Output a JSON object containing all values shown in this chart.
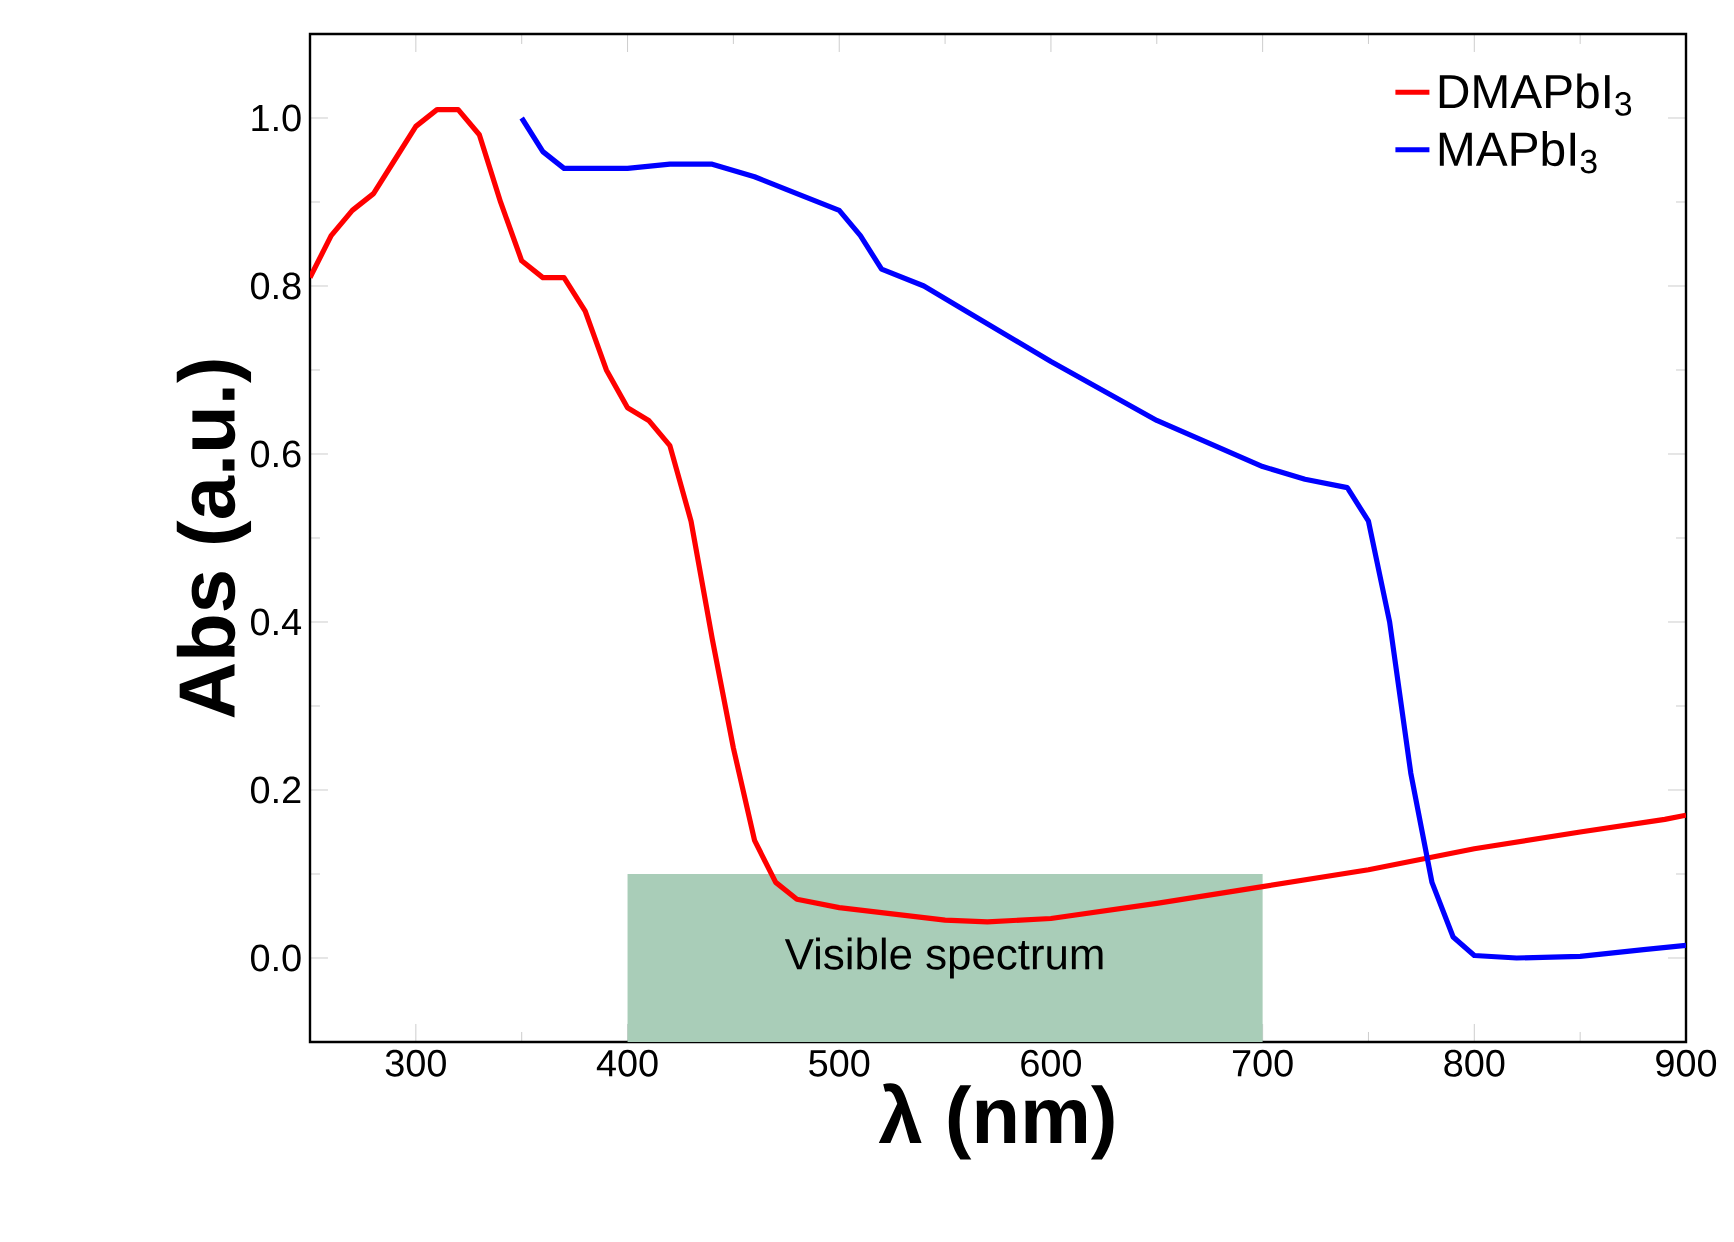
{
  "chart_data": {
    "type": "line",
    "xlabel": "λ (nm)",
    "ylabel": "Abs (a.u.)",
    "xlim": [
      250,
      900
    ],
    "ylim": [
      -0.1,
      1.1
    ],
    "xticks": [
      300,
      400,
      500,
      600,
      700,
      800,
      900
    ],
    "yticks": [
      {
        "value": 0,
        "label": "0.0"
      },
      0.2,
      0.4,
      0.6,
      0.8,
      {
        "value": 1,
        "label": "1.0"
      }
    ],
    "legend": "top right",
    "grid": false,
    "line_style": "solid",
    "marker": "none",
    "bands": [
      {
        "axis": "x",
        "from": 400,
        "to": 700,
        "label": "Visible spectrum",
        "color": "#a9cdb8"
      }
    ],
    "series": [
      {
        "name": "DMAPbI$_{3}$",
        "color": "#ff0000",
        "x": [
          250,
          260,
          270,
          280,
          290,
          300,
          310,
          320,
          330,
          340,
          350,
          360,
          370,
          380,
          390,
          400,
          410,
          420,
          430,
          440,
          450,
          460,
          470,
          480,
          500,
          550,
          570,
          600,
          650,
          700,
          750,
          800,
          850,
          890,
          900
        ],
        "values": [
          0.81,
          0.86,
          0.89,
          0.91,
          0.95,
          0.99,
          1.01,
          1.01,
          0.98,
          0.9,
          0.83,
          0.81,
          0.81,
          0.77,
          0.7,
          0.655,
          0.64,
          0.61,
          0.52,
          0.38,
          0.25,
          0.14,
          0.09,
          0.07,
          0.06,
          0.045,
          0.043,
          0.047,
          0.065,
          0.085,
          0.105,
          0.13,
          0.15,
          0.165,
          0.17
        ]
      },
      {
        "name": "MAPbI$_{3}$",
        "color": "#0000ff",
        "x": [
          350,
          360,
          370,
          380,
          400,
          420,
          440,
          460,
          480,
          500,
          510,
          520,
          540,
          560,
          600,
          650,
          700,
          720,
          740,
          750,
          760,
          770,
          780,
          790,
          800,
          820,
          850,
          880,
          900
        ],
        "values": [
          1.0,
          0.96,
          0.94,
          0.94,
          0.94,
          0.945,
          0.945,
          0.93,
          0.91,
          0.89,
          0.86,
          0.82,
          0.8,
          0.77,
          0.71,
          0.64,
          0.585,
          0.57,
          0.56,
          0.52,
          0.4,
          0.22,
          0.09,
          0.025,
          0.003,
          0.0,
          0.002,
          0.01,
          0.015
        ]
      }
    ]
  }
}
